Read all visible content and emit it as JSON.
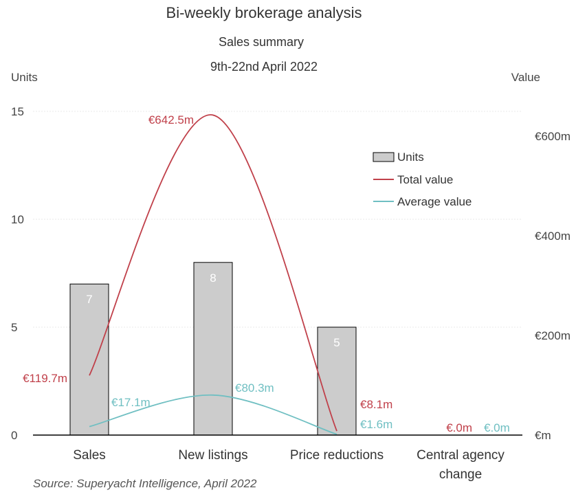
{
  "chart_data": {
    "type": "bar",
    "title": "Bi-weekly brokerage analysis",
    "subtitle": "Sales summary",
    "subtitle2": "9th-22nd April 2022",
    "ylabel_left": "Units",
    "ylabel_right": "Value",
    "categories": [
      "Sales",
      "New listings",
      "Price reductions",
      "Central agency change"
    ],
    "y_left": {
      "min": 0,
      "max": 15,
      "ticks": [
        "0",
        "5",
        "10",
        "15"
      ]
    },
    "y_right": {
      "min": 0,
      "max": 650,
      "ticks": [
        {
          "value": 0,
          "label": "€m"
        },
        {
          "value": 200,
          "label": "€200m"
        },
        {
          "value": 400,
          "label": "€400m"
        },
        {
          "value": 600,
          "label": "€600m"
        }
      ]
    },
    "series": [
      {
        "name": "Units",
        "kind": "bar",
        "axis": "left",
        "color": "#cccccc",
        "values": [
          7,
          8,
          5,
          null
        ],
        "labels": [
          "7",
          "8",
          "5",
          ""
        ]
      },
      {
        "name": "Total value",
        "kind": "line",
        "axis": "right",
        "color": "#c0404a",
        "values": [
          119.7,
          642.5,
          8.1,
          0
        ],
        "labels": [
          "€119.7m",
          "€642.5m",
          "€8.1m",
          "€.0m"
        ]
      },
      {
        "name": "Average value",
        "kind": "line",
        "axis": "right",
        "color": "#6fbfc2",
        "values": [
          17.1,
          80.3,
          1.6,
          0
        ],
        "labels": [
          "€17.1m",
          "€80.3m",
          "€1.6m",
          "€.0m"
        ]
      }
    ],
    "legend": {
      "position": "top-right"
    },
    "grid": true,
    "source": "Source: Superyacht Intelligence, April 2022"
  }
}
